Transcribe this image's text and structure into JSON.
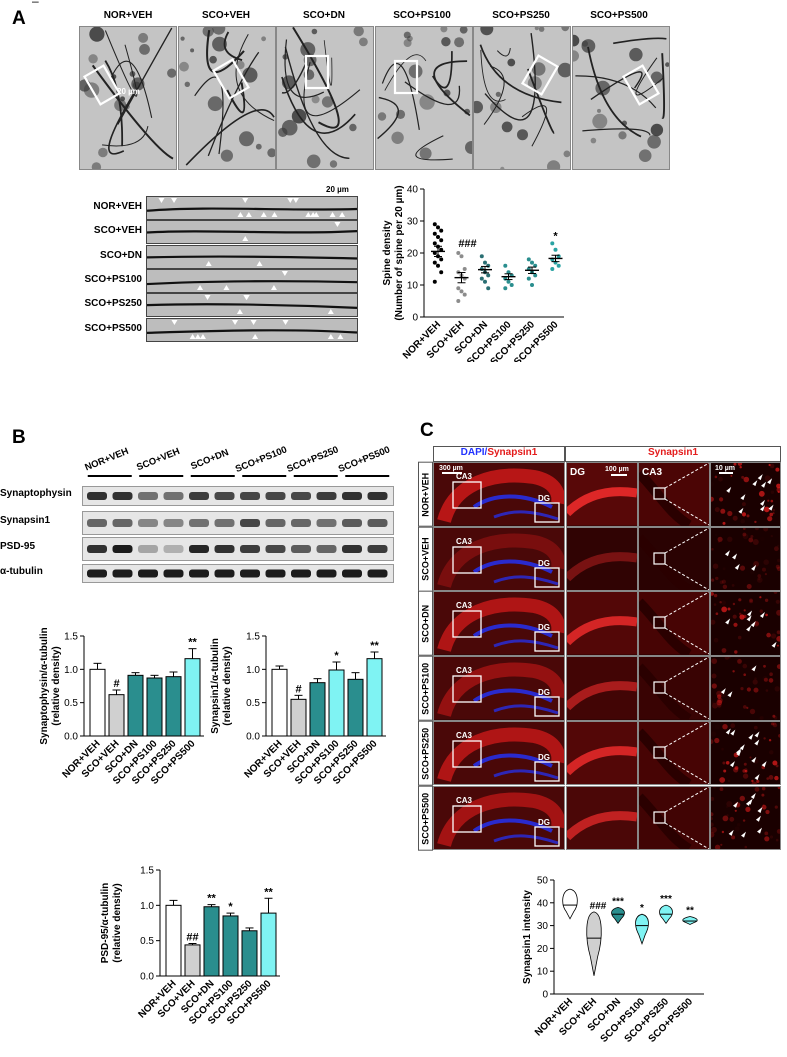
{
  "page_marker": "–",
  "panels": {
    "a": "A",
    "b": "B",
    "c": "C"
  },
  "groups": [
    "NOR+VEH",
    "SCO+VEH",
    "SCO+DN",
    "SCO+PS100",
    "SCO+PS250",
    "SCO+PS500"
  ],
  "panel_a": {
    "micro_scale": "20 µm",
    "strip_scale": "20 µm"
  },
  "panel_b": {
    "blot_labels": [
      "Synaptophysin",
      "Synapsin1",
      "PSD-95",
      "α-tubulin"
    ]
  },
  "panel_c": {
    "header_left_dapi": "DAPI/",
    "header_left_syn": "Synapsin1",
    "header_right": "Synapsin1",
    "scale_300": "300 µm",
    "scale_100": "100 µm",
    "scale_10": "10 µm",
    "dg_col": "DG",
    "ca3_col": "CA3",
    "region_ca3": "CA3",
    "region_dg": "DG"
  },
  "colors": {
    "teal": "#2a8e8e",
    "cyan": "#7ff3f3",
    "lightgray": "#d0d0d0",
    "dapi_blue": "#2233ff",
    "syn_red": "#e41c1c"
  },
  "chart_data": [
    {
      "id": "spine",
      "type": "scatter",
      "ylabel": "Spine density\n(Number of spine per 20 µm)",
      "ylim": [
        0,
        40
      ],
      "yticks": [
        0,
        10,
        20,
        30,
        40
      ],
      "categories": [
        "NOR+VEH",
        "SCO+VEH",
        "SCO+DN",
        "SCO+PS100",
        "SCO+PS250",
        "SCO+PS500"
      ],
      "means": [
        20.5,
        12.3,
        14.8,
        12.6,
        14.6,
        18.3
      ],
      "sem": [
        1.6,
        1.6,
        1.0,
        0.9,
        1.0,
        1.0
      ],
      "points": [
        [
          29,
          28,
          27,
          26,
          25,
          24,
          23,
          22,
          21,
          20,
          19,
          18,
          17,
          16,
          14,
          11
        ],
        [
          20,
          19,
          15,
          14,
          13,
          12,
          9,
          8,
          7,
          5
        ],
        [
          19,
          17,
          16,
          15,
          14,
          13,
          12,
          11,
          9
        ],
        [
          16,
          14,
          13,
          12,
          11,
          10,
          9
        ],
        [
          18,
          17,
          16,
          15,
          14,
          13,
          12,
          10
        ],
        [
          23,
          21,
          19,
          18,
          17,
          16,
          15
        ]
      ],
      "colors": [
        "#000000",
        "#8c8c8c",
        "#2a6f73",
        "#2a8e8e",
        "#2a8e8e",
        "#2aa3a3"
      ],
      "annotations": [
        "",
        "###",
        "",
        "",
        "",
        "*"
      ]
    },
    {
      "id": "syp",
      "type": "bar",
      "ylabel": "Synaptophysin/α-tubulin\n(relative density)",
      "ylim": [
        0,
        1.5
      ],
      "yticks": [
        0.0,
        0.5,
        1.0,
        1.5
      ],
      "categories": [
        "NOR+VEH",
        "SCO+VEH",
        "SCO+DN",
        "SCO+PS100",
        "SCO+PS250",
        "SCO+PS500"
      ],
      "values": [
        1.0,
        0.62,
        0.91,
        0.87,
        0.89,
        1.16
      ],
      "errors": [
        0.09,
        0.07,
        0.04,
        0.04,
        0.07,
        0.15
      ],
      "annotations": [
        "",
        "#",
        "",
        "",
        "",
        "**"
      ]
    },
    {
      "id": "syn1",
      "type": "bar",
      "ylabel": "Synapsin1/α-tubulin\n(relative density)",
      "ylim": [
        0,
        1.5
      ],
      "yticks": [
        0.0,
        0.5,
        1.0,
        1.5
      ],
      "categories": [
        "NOR+VEH",
        "SCO+VEH",
        "SCO+DN",
        "SCO+PS100",
        "SCO+PS250",
        "SCO+PS500"
      ],
      "values": [
        1.0,
        0.55,
        0.8,
        0.99,
        0.85,
        1.16
      ],
      "errors": [
        0.05,
        0.06,
        0.06,
        0.12,
        0.1,
        0.1
      ],
      "annotations": [
        "",
        "#",
        "",
        "*",
        "",
        "**"
      ]
    },
    {
      "id": "psd",
      "type": "bar",
      "ylabel": "PSD-95/α-tubulin\n(relative density)",
      "ylim": [
        0,
        1.5
      ],
      "yticks": [
        0.0,
        0.5,
        1.0,
        1.5
      ],
      "categories": [
        "NOR+VEH",
        "SCO+VEH",
        "SCO+DN",
        "SCO+PS100",
        "SCO+PS250",
        "SCO+PS500"
      ],
      "values": [
        1.0,
        0.44,
        0.98,
        0.85,
        0.64,
        0.89
      ],
      "errors": [
        0.07,
        0.02,
        0.03,
        0.04,
        0.04,
        0.21
      ],
      "annotations": [
        "",
        "##",
        "**",
        "*",
        "",
        "**"
      ]
    },
    {
      "id": "violin",
      "type": "violin",
      "ylabel": "Synapsin1 intensity",
      "ylim": [
        0,
        50
      ],
      "yticks": [
        0,
        10,
        20,
        30,
        40,
        50
      ],
      "categories": [
        "NOR+VEH",
        "SCO+VEH",
        "SCO+DN",
        "SCO+PS100",
        "SCO+PS250",
        "SCO+PS500"
      ],
      "medians": [
        39,
        24.5,
        35,
        30,
        35,
        32
      ],
      "ranges": [
        [
          33,
          46
        ],
        [
          8,
          36
        ],
        [
          31,
          38
        ],
        [
          22,
          35
        ],
        [
          31,
          39
        ],
        [
          30.5,
          34
        ]
      ],
      "annotations": [
        "",
        "###",
        "***",
        "*",
        "***",
        "**"
      ]
    }
  ]
}
